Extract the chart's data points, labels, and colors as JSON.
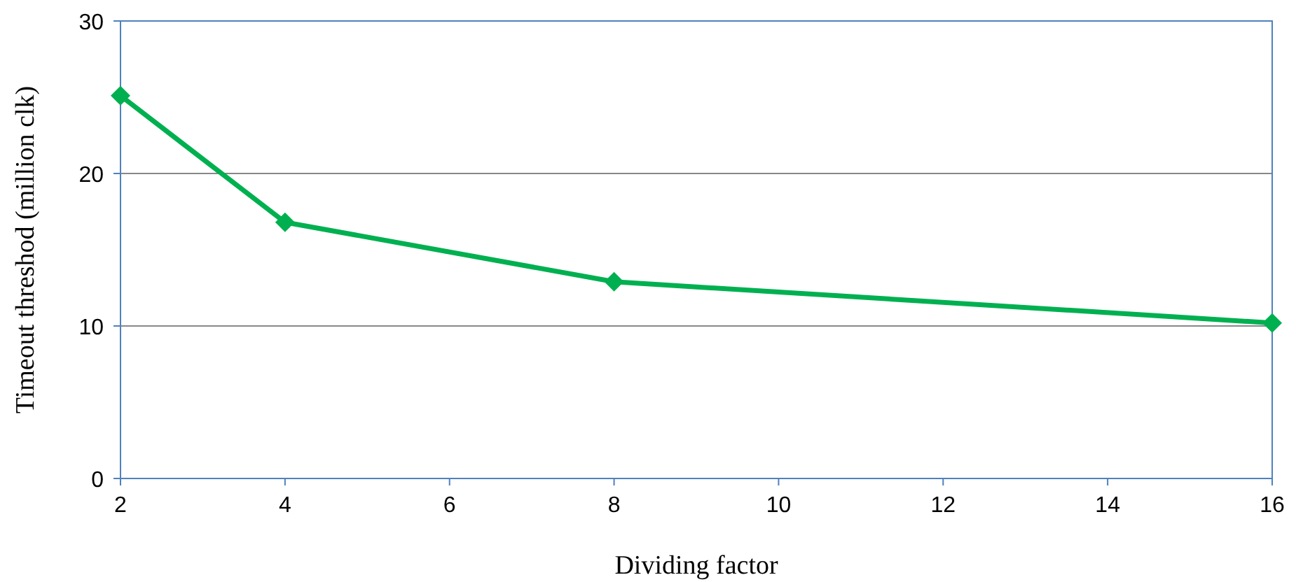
{
  "chart_data": {
    "type": "line",
    "xlabel": "Dividing factor",
    "ylabel": "Timeout threshod (million clk)",
    "x": [
      2,
      4,
      8,
      16
    ],
    "series": [
      {
        "color": "#00b050",
        "values": [
          25.1,
          16.8,
          12.9,
          10.2
        ]
      }
    ],
    "xlim": [
      2,
      16
    ],
    "xticks": [
      2,
      4,
      6,
      8,
      10,
      12,
      14,
      16
    ],
    "ylim": [
      0,
      30
    ],
    "yticks": [
      0,
      10,
      20,
      30
    ],
    "grid": "y",
    "marker": "diamond",
    "line_style": "solid"
  }
}
